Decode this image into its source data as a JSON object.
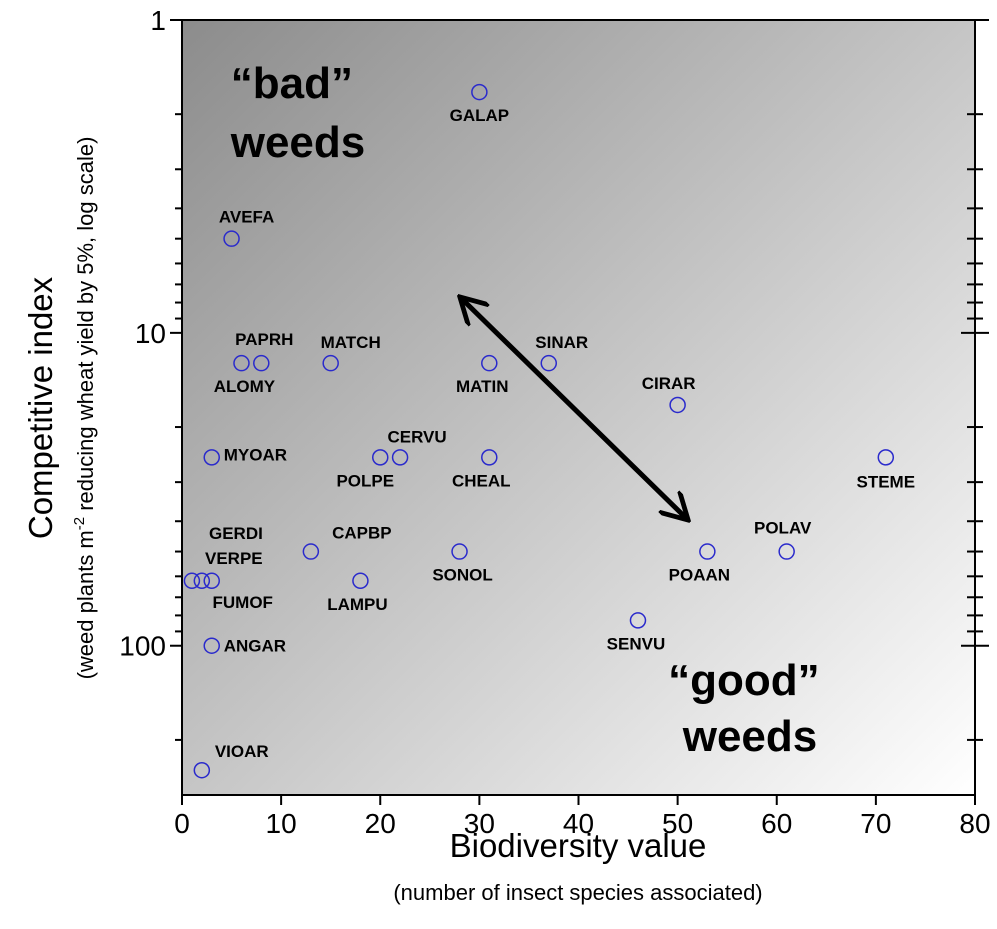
{
  "chart_data": {
    "type": "scatter",
    "x_label": "Biodiversity value",
    "x_sublabel": "(number of insect species associated)",
    "y_label": "Competitive index",
    "y_sublabel": [
      "(weed plants m",
      "-2",
      " reducing wheat yield by 5%, log scale)"
    ],
    "annotations": [
      [
        "“bad”",
        "weeds"
      ],
      [
        "“good”",
        "weeds"
      ]
    ],
    "y_log": true,
    "y_inverted": true,
    "xlim": [
      0,
      80
    ],
    "ylim": [
      1,
      300
    ],
    "xticks": [
      0,
      10,
      20,
      30,
      40,
      50,
      60,
      70,
      80
    ],
    "yticks": [
      1,
      10,
      100
    ],
    "yminor_ticks": [
      2,
      3,
      4,
      5,
      6,
      7,
      8,
      9,
      20,
      30,
      40,
      50,
      60,
      70,
      80,
      90,
      200
    ],
    "color": "#2a2acc",
    "labels": [
      "GALAP",
      "AVEFA",
      "PAPRH",
      "ALOMY",
      "MATCH",
      "MATIN",
      "SINAR",
      "CIRAR",
      "MYOAR",
      "POLPE",
      "CERVU",
      "CHEAL",
      "STEME",
      "GERDI",
      "VERPE",
      "FUMOF",
      "CAPBP",
      "SONOL",
      "POAAN",
      "POLAV",
      "LAMPU",
      "SENVU",
      "ANGAR",
      "VIOAR"
    ],
    "x": [
      30,
      5,
      8,
      6,
      15,
      31,
      37,
      50,
      3,
      20,
      22,
      31,
      71,
      1,
      2,
      3,
      13,
      28,
      53,
      61,
      18,
      46,
      3,
      2
    ],
    "values": [
      1.7,
      5,
      12.5,
      12.5,
      12.5,
      12.5,
      12.5,
      17,
      25,
      25,
      25,
      25,
      25,
      62,
      62,
      62,
      50,
      50,
      50,
      50,
      62,
      83,
      100,
      250
    ]
  }
}
